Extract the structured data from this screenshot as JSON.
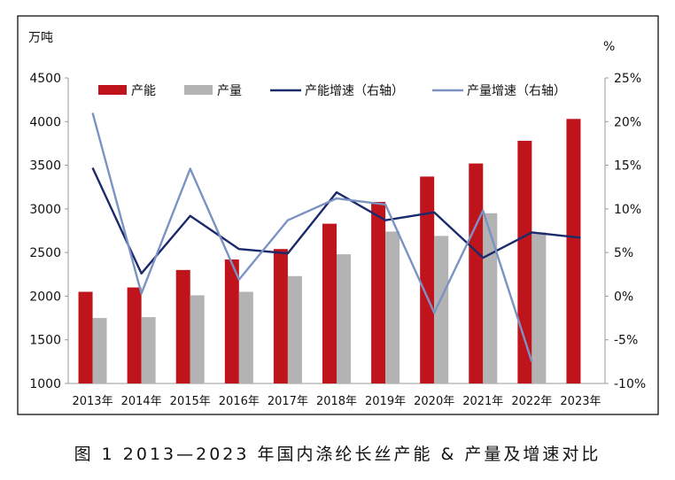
{
  "chart_data": {
    "type": "bar+line",
    "categories": [
      "2013年",
      "2014年",
      "2015年",
      "2016年",
      "2017年",
      "2018年",
      "2019年",
      "2020年",
      "2021年",
      "2022年",
      "2023年"
    ],
    "left_axis": {
      "unit_label": "万吨",
      "ylim": [
        1000,
        4500
      ],
      "ticks": [
        "1000",
        "1500",
        "2000",
        "2500",
        "3000",
        "3500",
        "4000",
        "4500"
      ]
    },
    "right_axis": {
      "unit_label": "%",
      "ylim": [
        -10,
        25
      ],
      "ticks": [
        "-10%",
        "-5%",
        "0%",
        "5%",
        "10%",
        "15%",
        "20%",
        "25%"
      ]
    },
    "series": [
      {
        "name": "产能",
        "kind": "bar",
        "axis": "left",
        "color": "#c0141c",
        "values": [
          2050,
          2100,
          2300,
          2420,
          2540,
          2830,
          3080,
          3370,
          3520,
          3780,
          4030
        ]
      },
      {
        "name": "产量",
        "kind": "bar",
        "axis": "left",
        "color": "#b3b3b3",
        "values": [
          1750,
          1760,
          2010,
          2050,
          2230,
          2480,
          2740,
          2690,
          2950,
          2730,
          null
        ]
      },
      {
        "name": "产能增速（右轴）",
        "kind": "line",
        "axis": "right",
        "color": "#1b2a6b",
        "values": [
          14.7,
          2.6,
          9.2,
          5.4,
          4.9,
          11.9,
          8.7,
          9.6,
          4.4,
          7.3,
          6.7
        ]
      },
      {
        "name": "产量增速（右轴）",
        "kind": "line",
        "axis": "right",
        "color": "#7b93c3",
        "values": [
          21.0,
          0.3,
          14.6,
          1.9,
          8.7,
          11.2,
          10.5,
          -1.9,
          9.8,
          -7.5,
          null
        ]
      }
    ],
    "legend_position": "top",
    "grid": false
  },
  "caption": "图 1  2013—2023 年国内涤纶长丝产能 & 产量及增速对比"
}
